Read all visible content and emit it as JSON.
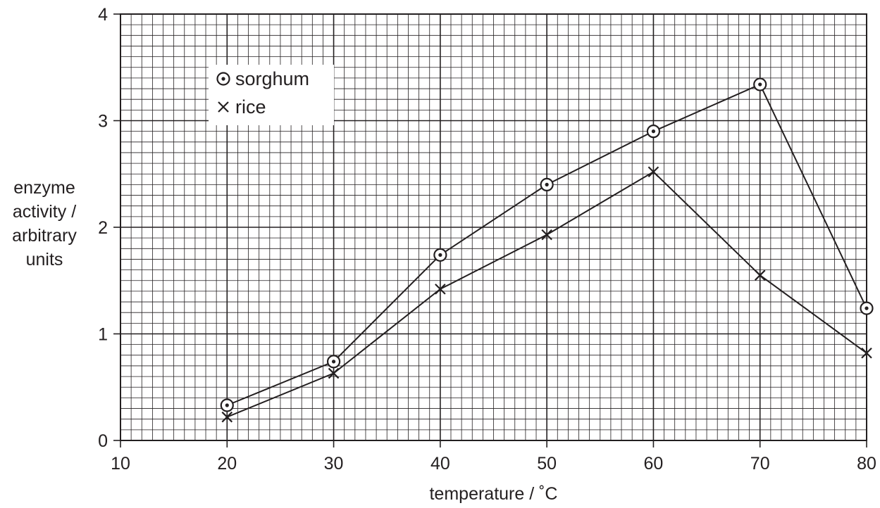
{
  "chart_data": {
    "type": "line",
    "xlabel": "temperature / ˚C",
    "ylabel_lines": [
      "enzyme",
      "activity /",
      "arbitrary",
      "units"
    ],
    "xlim": [
      10,
      80
    ],
    "ylim": [
      0,
      4
    ],
    "x_ticks": [
      10,
      20,
      30,
      40,
      50,
      60,
      70,
      80
    ],
    "y_ticks": [
      0,
      1,
      2,
      3,
      4
    ],
    "grid": true,
    "legend_position": "top-left",
    "x": [
      20,
      30,
      40,
      50,
      60,
      70,
      80
    ],
    "series": [
      {
        "name": "sorghum",
        "marker": "circle-dot",
        "values": [
          0.33,
          0.74,
          1.74,
          2.4,
          2.9,
          3.34,
          1.24
        ]
      },
      {
        "name": "rice",
        "marker": "cross",
        "values": [
          0.22,
          0.63,
          1.42,
          1.93,
          2.52,
          1.55,
          0.82
        ]
      }
    ],
    "colors": {
      "line": "#231f20",
      "grid": "#231f20",
      "background": "#ffffff"
    }
  }
}
